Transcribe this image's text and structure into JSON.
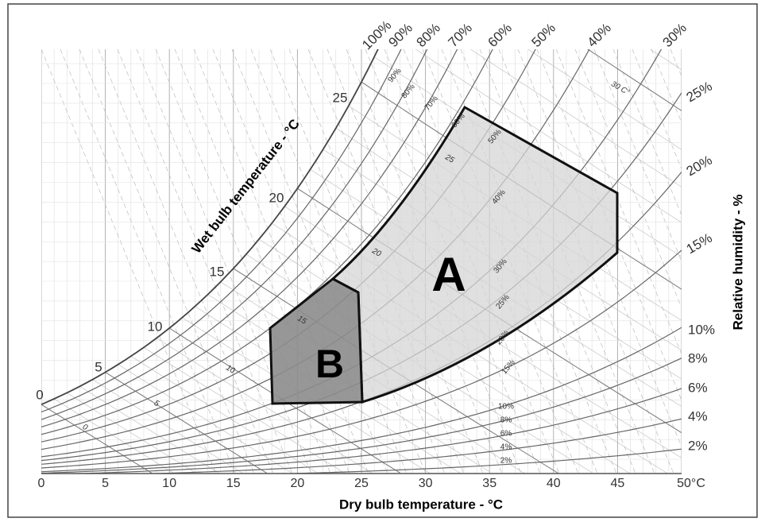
{
  "x_axis": {
    "title": "Dry bulb temperature - °C",
    "labels": [
      "0",
      "5",
      "10",
      "15",
      "20",
      "25",
      "30",
      "35",
      "40",
      "45",
      "50°C"
    ]
  },
  "wet_bulb": {
    "title": "Wet bulb temperature - °C",
    "labels": [
      "0",
      "5",
      "10",
      "15",
      "20",
      "25"
    ],
    "inner_labels": [
      "0",
      "5",
      "10",
      "15",
      "20",
      "25"
    ],
    "note": "30 C°"
  },
  "relative_humidity": {
    "title": "Relative humidity - %",
    "top_labels": [
      "100%",
      "90%",
      "80%",
      "70%",
      "60%",
      "50%",
      "40%",
      "30%"
    ],
    "right_labels": [
      "25%",
      "20%",
      "15%",
      "10%",
      "8%",
      "6%",
      "4%",
      "2%"
    ],
    "inner_labels": [
      "90%",
      "80%",
      "70%",
      "60%",
      "50%",
      "40%",
      "30%",
      "25%",
      "20%",
      "15%",
      "10%",
      "8%",
      "6%",
      "4%",
      "2%"
    ]
  },
  "zones": [
    {
      "label": "A"
    },
    {
      "label": "B"
    }
  ]
}
